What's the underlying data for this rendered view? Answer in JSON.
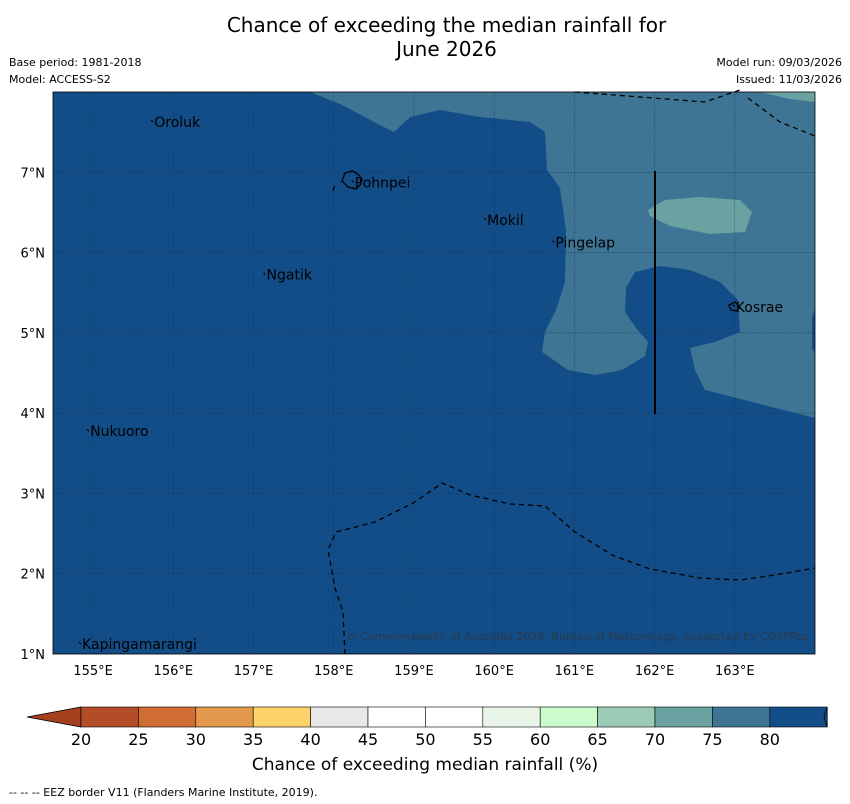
{
  "title": {
    "line1": "Chance of exceeding the median rainfall for",
    "line2": "June 2026"
  },
  "meta_left": {
    "base_period": "Base period: 1981-2018",
    "model": "Model: ACCESS-S2"
  },
  "meta_right": {
    "model_run": "Model run: 09/03/2026",
    "issued": "Issued: 11/03/2026"
  },
  "map": {
    "lon_range": [
      154.5,
      164.0
    ],
    "lat_range": [
      1.0,
      8.0
    ],
    "x_ticks": [
      "155°E",
      "156°E",
      "157°E",
      "158°E",
      "159°E",
      "160°E",
      "161°E",
      "162°E",
      "163°E"
    ],
    "y_ticks": [
      "7°N",
      "6°N",
      "5°N",
      "4°N",
      "3°N",
      "2°N",
      "1°N"
    ],
    "places": [
      {
        "name": "Oroluk",
        "lon": 155.75,
        "lat": 7.6
      },
      {
        "name": "Pohnpei",
        "lon": 158.25,
        "lat": 6.85
      },
      {
        "name": "Mokil",
        "lon": 159.9,
        "lat": 6.38
      },
      {
        "name": "Pingelap",
        "lon": 160.75,
        "lat": 6.1
      },
      {
        "name": "Ngatik",
        "lon": 157.15,
        "lat": 5.7
      },
      {
        "name": "Kosrae",
        "lon": 163.0,
        "lat": 5.3
      },
      {
        "name": "Nukuoro",
        "lon": 154.95,
        "lat": 3.75
      },
      {
        "name": "Kapingamarangi",
        "lon": 154.85,
        "lat": 1.1
      }
    ],
    "copyright": "© Commonwealth of Australia 2026, Bureau of Meteorology, supported by COSPPac",
    "colors": {
      "dark_blue": "#134d87",
      "mid_teal": "#3f7594",
      "light_teal": "#6aa2a1"
    }
  },
  "colorbar": {
    "ticks": [
      "20",
      "25",
      "30",
      "35",
      "40",
      "45",
      "50",
      "55",
      "60",
      "65",
      "70",
      "75",
      "80"
    ],
    "colors": [
      "#b24d27",
      "#d06d35",
      "#e49a4d",
      "#fdd46b",
      "#e8e8e8",
      "#ffffff",
      "#ffffff",
      "#e9f5e9",
      "#ccfbcc",
      "#9cccb5",
      "#6aa2a1",
      "#3f7594",
      "#134d87"
    ],
    "under_color": "#a5401f",
    "over_color": "#134d87",
    "label": "Chance of exceeding median rainfall (%)"
  },
  "footer": "--  --  -- EEZ border V11 (Flanders Marine Institute, 2019)."
}
